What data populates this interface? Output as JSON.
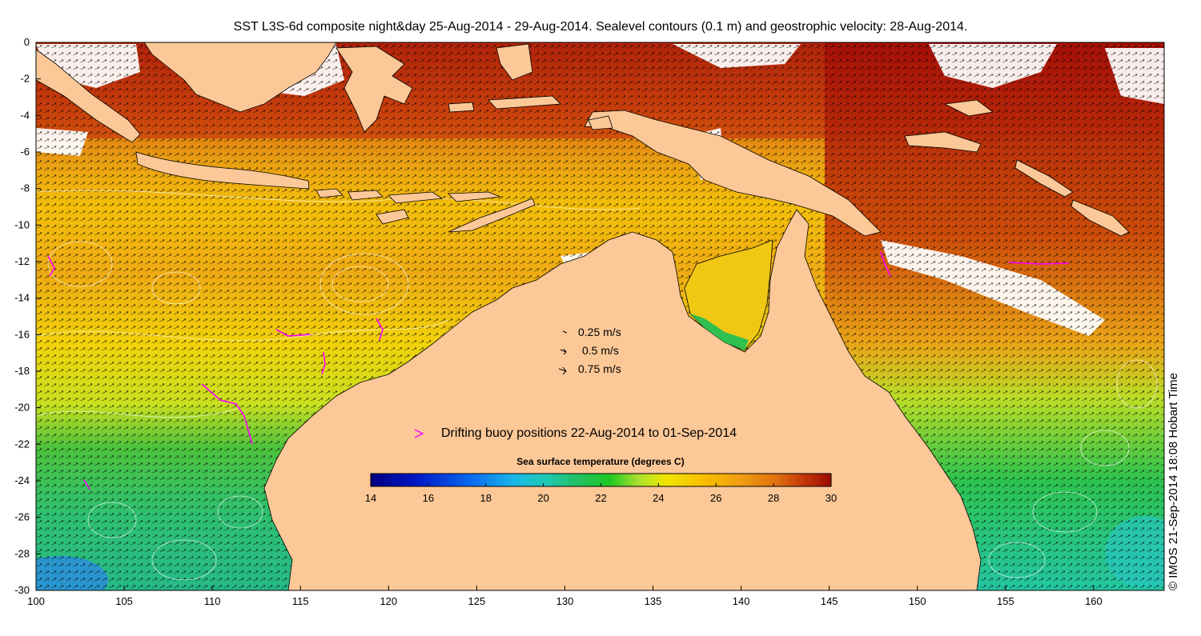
{
  "title": "SST L3S-6d composite night&day 25-Aug-2014 - 29-Aug-2014. Sealevel contours (0.1 m) and geostrophic velocity: 28-Aug-2014.",
  "credit": "© IMOS 21-Sep-2014 18:08 Hobart Time",
  "axes": {
    "x_ticks": [
      "100",
      "105",
      "110",
      "115",
      "120",
      "125",
      "130",
      "135",
      "140",
      "145",
      "150",
      "155",
      "160"
    ],
    "y_ticks": [
      "0",
      "-2",
      "-4",
      "-6",
      "-8",
      "-10",
      "-12",
      "-14",
      "-16",
      "-18",
      "-20",
      "-22",
      "-24",
      "-26",
      "-28",
      "-30"
    ],
    "lon_range": [
      100,
      164
    ],
    "lat_range": [
      -30,
      0
    ]
  },
  "velocity_legend": [
    {
      "label": "0.25 m/s"
    },
    {
      "label": "0.5 m/s"
    },
    {
      "label": "0.75 m/s"
    }
  ],
  "buoy_legend": {
    "label": "Drifting buoy positions 22-Aug-2014 to 01-Sep-2014",
    "color": "#ff00ff"
  },
  "colorbar": {
    "title": "Sea surface temperature (degrees C)",
    "ticks": [
      "14",
      "16",
      "18",
      "20",
      "22",
      "24",
      "26",
      "28",
      "30"
    ],
    "range": [
      14,
      30
    ]
  },
  "colors": {
    "land": "#fcc897",
    "no_data": "#ffffff"
  }
}
